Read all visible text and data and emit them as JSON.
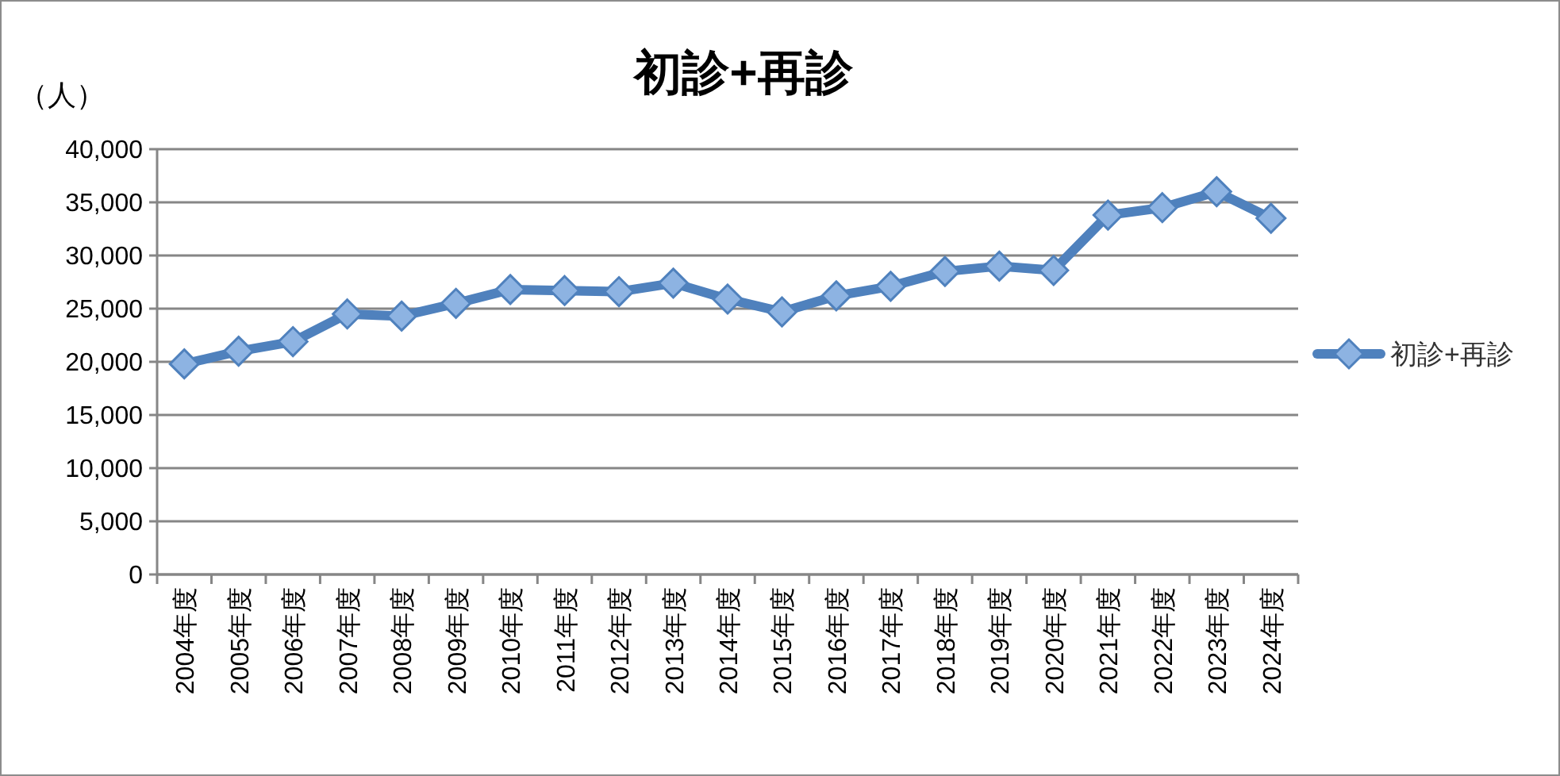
{
  "chart_data": {
    "type": "line",
    "title": "初診+再診",
    "ylabel": "（人）",
    "categories": [
      "2004年度",
      "2005年度",
      "2006年度",
      "2007年度",
      "2008年度",
      "2009年度",
      "2010年度",
      "2011年度",
      "2012年度",
      "2013年度",
      "2014年度",
      "2015年度",
      "2016年度",
      "2017年度",
      "2018年度",
      "2019年度",
      "2020年度",
      "2021年度",
      "2022年度",
      "2023年度",
      "2024年度"
    ],
    "series": [
      {
        "name": "初診+再診",
        "color": "#4f81bd",
        "values": [
          19800,
          21000,
          21900,
          24500,
          24300,
          25500,
          26800,
          26700,
          26600,
          27400,
          25900,
          24700,
          26200,
          27100,
          28500,
          29000,
          28600,
          33800,
          34500,
          36000,
          33500
        ]
      }
    ],
    "ylim": [
      0,
      40000
    ],
    "yticks": [
      0,
      {
        "value": 5000,
        "label": "5,000"
      },
      {
        "value": 10000,
        "label": "10,000"
      },
      {
        "value": 15000,
        "label": "15,000"
      },
      {
        "value": 20000,
        "label": "20,000"
      },
      {
        "value": 25000,
        "label": "25,000"
      },
      {
        "value": 30000,
        "label": "30,000"
      },
      {
        "value": 35000,
        "label": "35,000"
      },
      {
        "value": 40000,
        "label": "40,000"
      }
    ],
    "grid": "y",
    "legend": "right",
    "marker": "diamond",
    "line_style": "solid"
  }
}
